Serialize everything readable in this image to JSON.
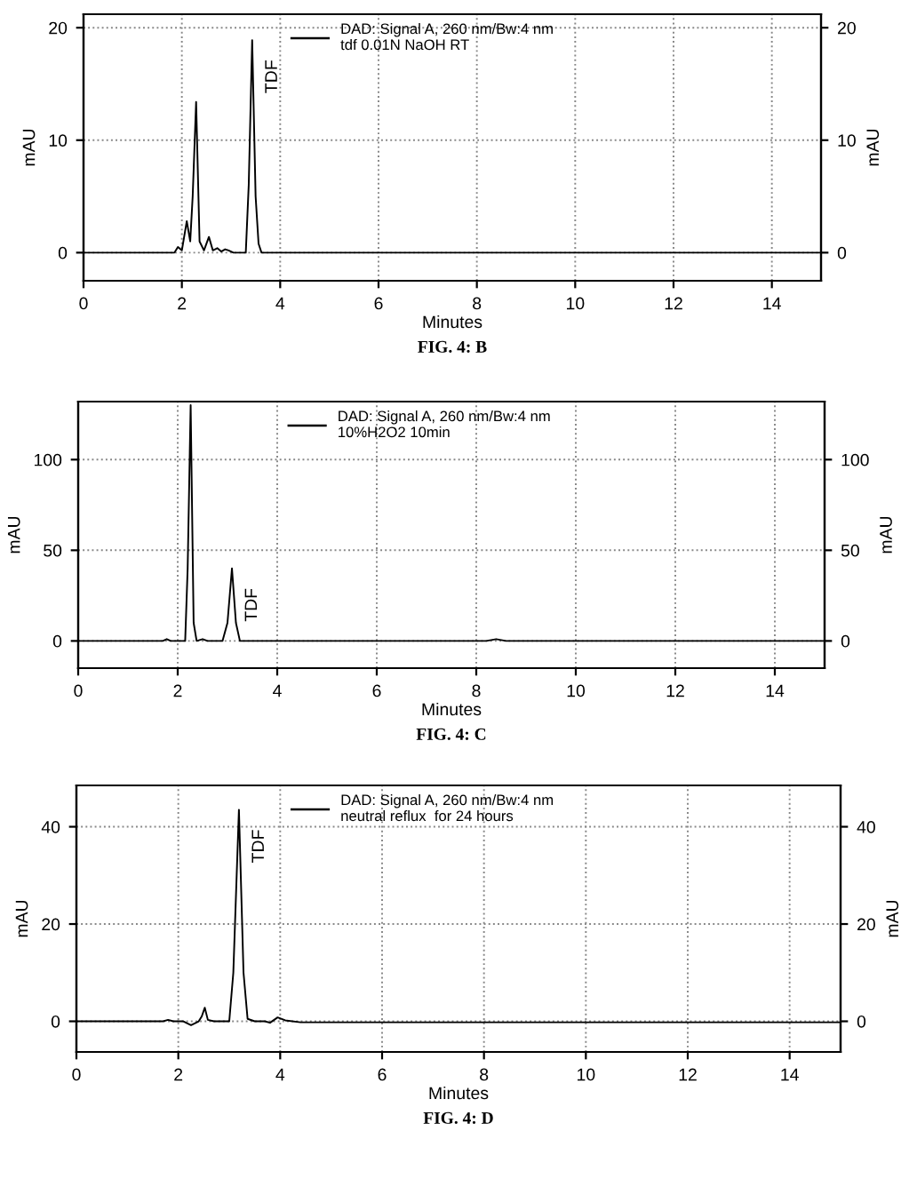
{
  "chart_data": [
    {
      "type": "line",
      "xlabel": "Minutes",
      "ylabel": "mAU",
      "y2label": "mAU",
      "xlim": [
        0,
        15
      ],
      "xticks": [
        0,
        2,
        4,
        6,
        8,
        10,
        12,
        14
      ],
      "ylim": [
        -2.5,
        21.2
      ],
      "yticks": [
        0,
        10,
        20
      ],
      "y2lim": [
        -2.5,
        21.2
      ],
      "y2ticks": [
        0,
        10,
        20
      ],
      "grid": true,
      "legend": "top left",
      "marker": "none",
      "line_style": "solid",
      "series": [
        {
          "name": "DAD: Signal A, 260 nm/Bw:4 nm\ntdf 0.01N NaOH RT",
          "color": "#000000",
          "x": [
            0,
            1.85,
            1.92,
            2.0,
            2.1,
            2.17,
            2.22,
            2.29,
            2.36,
            2.45,
            2.55,
            2.63,
            2.72,
            2.8,
            2.88,
            2.95,
            3.05,
            3.3,
            3.36,
            3.43,
            3.5,
            3.56,
            3.62,
            3.7,
            15
          ],
          "values": [
            0,
            0,
            0.5,
            0.2,
            2.8,
            1,
            5,
            13.4,
            1,
            0.2,
            1.4,
            0.2,
            0.4,
            0.1,
            0.3,
            0.2,
            0,
            0,
            6,
            18.9,
            5,
            0.8,
            0,
            0,
            0
          ]
        }
      ],
      "annotations": [
        {
          "text": "TDF",
          "x": 3.43,
          "y": 18.9
        },
        "FIG. 4: B"
      ]
    },
    {
      "type": "line",
      "xlabel": "Minutes",
      "ylabel": "mAU",
      "y2label": "mAU",
      "xlim": [
        0,
        15
      ],
      "xticks": [
        0,
        2,
        4,
        6,
        8,
        10,
        12,
        14
      ],
      "ylim": [
        -15,
        132
      ],
      "yticks": [
        0,
        50,
        100
      ],
      "y2lim": [
        -15,
        132
      ],
      "y2ticks": [
        0,
        50,
        100
      ],
      "grid": true,
      "legend": "top left",
      "marker": "none",
      "line_style": "solid",
      "series": [
        {
          "name": "DAD: Signal A, 260 nm/Bw:4 nm\n10%H2O2 10min",
          "color": "#000000",
          "x": [
            0,
            1.7,
            1.78,
            1.86,
            2.0,
            2.15,
            2.2,
            2.26,
            2.32,
            2.38,
            2.5,
            2.6,
            2.9,
            3.0,
            3.09,
            3.17,
            3.25,
            3.4,
            8.2,
            8.4,
            8.6,
            15
          ],
          "values": [
            0,
            0,
            1,
            0,
            0,
            0,
            40,
            130,
            10,
            0,
            1,
            0,
            0,
            10,
            40,
            10,
            0,
            0,
            0,
            1,
            0,
            0
          ]
        }
      ],
      "annotations": [
        {
          "text": "TDF",
          "x": 3.09,
          "y": 40
        },
        "FIG. 4: C"
      ]
    },
    {
      "type": "line",
      "xlabel": "Minutes",
      "ylabel": "mAU",
      "y2label": "mAU",
      "xlim": [
        0,
        15
      ],
      "xticks": [
        0,
        2,
        4,
        6,
        8,
        10,
        12,
        14
      ],
      "ylim": [
        -6.3,
        48.5
      ],
      "yticks": [
        0,
        20,
        40
      ],
      "y2lim": [
        -6.3,
        48.5
      ],
      "y2ticks": [
        0,
        20,
        40
      ],
      "grid": true,
      "legend": "top left",
      "marker": "none",
      "line_style": "solid",
      "series": [
        {
          "name": "DAD: Signal A, 260 nm/Bw:4 nm\nneutral reflux  for 24 hours",
          "color": "#000000",
          "x": [
            0,
            1.7,
            1.8,
            1.9,
            2.1,
            2.25,
            2.4,
            2.46,
            2.52,
            2.58,
            2.7,
            3.0,
            3.08,
            3.19,
            3.28,
            3.36,
            3.5,
            3.7,
            3.8,
            3.95,
            4.1,
            4.4,
            15
          ],
          "values": [
            0,
            0,
            0.3,
            0,
            0,
            -0.8,
            0,
            1,
            2.8,
            0.3,
            0,
            0,
            10,
            43.5,
            10,
            0.5,
            0,
            0,
            -0.3,
            0.8,
            0.2,
            -0.2,
            -0.2
          ]
        }
      ],
      "annotations": [
        {
          "text": "TDF",
          "x": 3.19,
          "y": 43.5
        },
        "FIG. 4: D"
      ]
    }
  ]
}
